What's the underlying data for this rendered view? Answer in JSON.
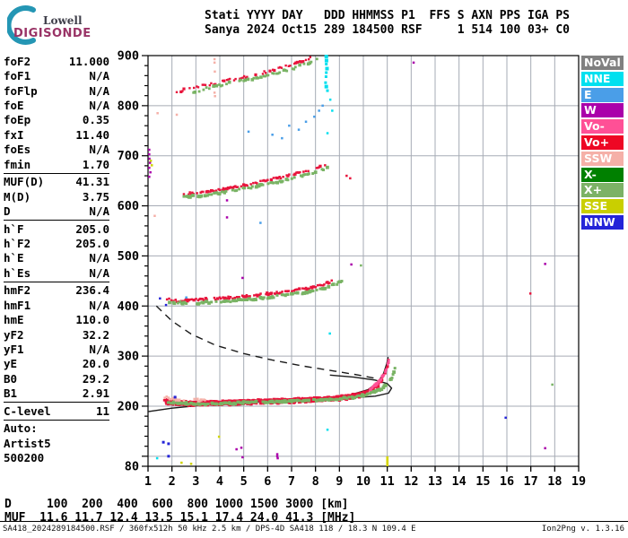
{
  "header": {
    "logo_top": "Lowell",
    "logo_bottom": "DIGISONDE",
    "line1": "Stati YYYY DAY   DDD HHMMSS P1  FFS S AXN PPS IGA PS",
    "line2": "Sanya 2024 Oct15 289 184500 RSF     1 514 100 03+ C0"
  },
  "params": {
    "groups": [
      [
        {
          "label": "foF2",
          "value": "11.000"
        },
        {
          "label": "foF1",
          "value": "N/A"
        },
        {
          "label": "foFlp",
          "value": "N/A"
        },
        {
          "label": "foE",
          "value": "N/A"
        },
        {
          "label": "foEp",
          "value": "0.35"
        },
        {
          "label": "fxI",
          "value": "11.40"
        },
        {
          "label": "foEs",
          "value": "N/A"
        },
        {
          "label": "fmin",
          "value": "1.70"
        }
      ],
      [
        {
          "label": "MUF(D)",
          "value": "41.31"
        },
        {
          "label": "M(D)",
          "value": "3.75"
        },
        {
          "label": "D",
          "value": "N/A"
        }
      ],
      [
        {
          "label": "h`F",
          "value": "205.0"
        },
        {
          "label": "h`F2",
          "value": "205.0"
        },
        {
          "label": "h`E",
          "value": "N/A"
        },
        {
          "label": "h`Es",
          "value": "N/A"
        }
      ],
      [
        {
          "label": "hmF2",
          "value": "236.4"
        },
        {
          "label": "hmF1",
          "value": "N/A"
        },
        {
          "label": "hmE",
          "value": "110.0"
        },
        {
          "label": "yF2",
          "value": "32.2"
        },
        {
          "label": "yF1",
          "value": "N/A"
        },
        {
          "label": "yE",
          "value": "20.0"
        },
        {
          "label": "B0",
          "value": "29.2"
        },
        {
          "label": "B1",
          "value": "2.91"
        }
      ],
      [
        {
          "label": "C-level",
          "value": "11"
        }
      ],
      [
        {
          "label": "Auto:",
          "value": ""
        },
        {
          "label": "Artist5",
          "value": ""
        },
        {
          "label": "500200",
          "value": ""
        }
      ]
    ]
  },
  "legend": {
    "items": [
      {
        "label": "NoVal",
        "color": "#808080"
      },
      {
        "label": "NNE",
        "color": "#00e0ef"
      },
      {
        "label": "E",
        "color": "#4a9ee8"
      },
      {
        "label": "W",
        "color": "#aa00aa"
      },
      {
        "label": "Vo-",
        "color": "#ff5096"
      },
      {
        "label": "Vo+",
        "color": "#ee0724"
      },
      {
        "label": "SSW",
        "color": "#f5b0a8"
      },
      {
        "label": "X-",
        "color": "#008000"
      },
      {
        "label": "X+",
        "color": "#7cb266"
      },
      {
        "label": "SSE",
        "color": "#c9cf00"
      },
      {
        "label": "NNW",
        "color": "#2424d8"
      }
    ]
  },
  "bottom": {
    "line1": "D     100  200  400  600  800 1000 1500 3000 [km]",
    "line2": "MUF  11.6 11.7 12.4 13.5 15.1 17.4 24.0 41.3 [MHz]"
  },
  "footer": {
    "left": "SA418_2024289184500.RSF / 360fx512h 50 kHz 2.5 km / DPS-4D SA418 118 / 18.3 N 109.4 E",
    "right": "Ion2Png v. 1.3.16"
  },
  "chart_data": {
    "type": "scatter",
    "x_unit": "MHz",
    "y_unit": "km",
    "x_axis": {
      "min": 1,
      "max": 19,
      "ticks": [
        1,
        2,
        3,
        4,
        5,
        6,
        7,
        8,
        9,
        10,
        11,
        12,
        13,
        14,
        15,
        16,
        17,
        18,
        19
      ]
    },
    "y_axis": {
      "min": 80,
      "max": 900,
      "labeled_ticks": [
        900,
        800,
        700,
        600,
        500,
        400,
        300,
        200,
        80
      ],
      "minor_step": 20
    },
    "grid": {
      "color": "#a6abb5"
    },
    "dot_colors": {
      "R": "#e8143c",
      "G": "#79b364",
      "S": "#f5b0a8",
      "P": "#ff5096",
      "W": "#aa00aa",
      "E": "#4a9ee8",
      "C": "#00dfee",
      "N": "#2424d8",
      "Y": "#cfd400",
      "X": "#008000"
    },
    "traces": [
      {
        "name": "F-1hop-O",
        "c": "R",
        "size": 2.6,
        "thick": true,
        "gap": 0.08,
        "jitter": 1.2,
        "step": 0.033,
        "points": [
          [
            1.68,
            213
          ],
          [
            2.1,
            209
          ],
          [
            3,
            208
          ],
          [
            4,
            209
          ],
          [
            5,
            211
          ],
          [
            6,
            212
          ],
          [
            7,
            214
          ],
          [
            8,
            216
          ],
          [
            8.8,
            218
          ],
          [
            9.5,
            222
          ],
          [
            10.0,
            227
          ],
          [
            10.35,
            234
          ],
          [
            10.65,
            247
          ],
          [
            10.85,
            262
          ],
          [
            11.0,
            280
          ],
          [
            11.07,
            295
          ]
        ]
      },
      {
        "name": "F-1hop-X",
        "c": "G",
        "size": 3,
        "gap": 0.3,
        "jitter": 1.8,
        "step": 0.04,
        "points": [
          [
            1.8,
            208
          ],
          [
            3,
            204
          ],
          [
            5,
            207
          ],
          [
            7,
            210
          ],
          [
            8.8,
            214
          ],
          [
            9.6,
            218
          ],
          [
            10.2,
            224
          ],
          [
            10.7,
            233
          ],
          [
            11.0,
            244
          ],
          [
            11.2,
            258
          ],
          [
            11.32,
            275
          ],
          [
            11.38,
            292
          ]
        ]
      },
      {
        "name": "F-2hop-O",
        "c": "R",
        "size": 2.5,
        "gap": 0.3,
        "jitter": 2.2,
        "step": 0.045,
        "points": [
          [
            1.75,
            414
          ],
          [
            2.2,
            410
          ],
          [
            3,
            412
          ],
          [
            4,
            415
          ],
          [
            5,
            419
          ],
          [
            6,
            424
          ],
          [
            7,
            430
          ],
          [
            7.8,
            436
          ],
          [
            8.4,
            443
          ],
          [
            8.75,
            452
          ]
        ]
      },
      {
        "name": "F-2hop-X",
        "c": "G",
        "size": 3,
        "gap": 0.4,
        "jitter": 2.2,
        "step": 0.05,
        "points": [
          [
            1.9,
            408
          ],
          [
            3,
            406
          ],
          [
            5,
            412
          ],
          [
            6.5,
            420
          ],
          [
            8,
            430
          ],
          [
            8.8,
            442
          ],
          [
            9.1,
            450
          ]
        ]
      },
      {
        "name": "F-3hop-O",
        "c": "R",
        "size": 2.5,
        "gap": 0.35,
        "jitter": 2,
        "step": 0.05,
        "points": [
          [
            2.3,
            623
          ],
          [
            3,
            626
          ],
          [
            4,
            632
          ],
          [
            5,
            641
          ],
          [
            6,
            651
          ],
          [
            7,
            662
          ],
          [
            7.8,
            672
          ],
          [
            8.4,
            681
          ]
        ]
      },
      {
        "name": "F-3hop-X",
        "c": "G",
        "size": 3,
        "gap": 0.45,
        "jitter": 2,
        "step": 0.055,
        "points": [
          [
            2.5,
            617
          ],
          [
            3.5,
            622
          ],
          [
            5,
            634
          ],
          [
            6.5,
            649
          ],
          [
            8,
            666
          ],
          [
            8.55,
            676
          ]
        ]
      },
      {
        "name": "F-4hop-O",
        "c": "R",
        "size": 2.4,
        "gap": 0.5,
        "jitter": 2.5,
        "step": 0.06,
        "points": [
          [
            2.2,
            828
          ],
          [
            3,
            837
          ],
          [
            4,
            847
          ],
          [
            5,
            857
          ],
          [
            6,
            868
          ],
          [
            7,
            881
          ],
          [
            7.9,
            897
          ]
        ]
      },
      {
        "name": "F-4hop-X",
        "c": "G",
        "size": 2.8,
        "gap": 0.55,
        "jitter": 2.5,
        "step": 0.06,
        "points": [
          [
            2.6,
            824
          ],
          [
            4,
            841
          ],
          [
            5.5,
            855
          ],
          [
            7,
            873
          ],
          [
            8.1,
            892
          ]
        ]
      },
      {
        "name": "F-tip-pink",
        "c": "P",
        "size": 2.6,
        "gap": 0.35,
        "jitter": 1.5,
        "step": 0.02,
        "points": [
          [
            10.3,
            234
          ],
          [
            10.65,
            248
          ],
          [
            10.9,
            266
          ],
          [
            11.02,
            283
          ],
          [
            11.08,
            296
          ]
        ]
      },
      {
        "name": "F-start-salmon",
        "c": "S",
        "size": 2.6,
        "gap": 0.5,
        "jitter": 2.5,
        "step": 0.04,
        "points": [
          [
            1.7,
            217
          ],
          [
            2.4,
            213
          ],
          [
            3.4,
            212
          ]
        ]
      }
    ],
    "overlays": {
      "profile_line": [
        [
          1,
          189
        ],
        [
          2,
          196
        ],
        [
          3.5,
          203
        ],
        [
          5,
          207
        ],
        [
          7,
          212
        ],
        [
          8.5,
          217
        ],
        [
          9.5,
          223
        ],
        [
          10.2,
          233
        ],
        [
          10.6,
          247
        ],
        [
          10.85,
          266
        ],
        [
          10.98,
          285
        ],
        [
          11.04,
          298
        ]
      ],
      "muf_transmission_curve": [
        [
          1.35,
          400
        ],
        [
          2,
          370
        ],
        [
          2.8,
          344
        ],
        [
          3.8,
          322
        ],
        [
          5,
          305
        ],
        [
          6.2,
          292
        ],
        [
          7.5,
          280
        ],
        [
          8.8,
          270
        ],
        [
          9.8,
          262
        ],
        [
          10.45,
          256
        ]
      ],
      "tip_hook": [
        [
          8.6,
          262
        ],
        [
          9.6,
          258
        ],
        [
          10.5,
          252
        ],
        [
          11.0,
          245
        ],
        [
          11.18,
          236
        ],
        [
          11.05,
          226
        ],
        [
          10.5,
          220
        ],
        [
          9.6,
          217
        ],
        [
          8.7,
          216
        ]
      ]
    },
    "scatter": [
      [
        "W",
        1.05,
        712
      ],
      [
        "W",
        1.05,
        703
      ],
      [
        "W",
        1.06,
        694
      ],
      [
        "W",
        1.08,
        686
      ],
      [
        "W",
        1.05,
        676
      ],
      [
        "W",
        1.1,
        667
      ],
      [
        "W",
        1.05,
        658
      ],
      [
        "Y",
        1.12,
        690
      ],
      [
        "Y",
        1.16,
        681
      ],
      [
        "S",
        1.4,
        785
      ],
      [
        "S",
        1.28,
        580
      ],
      [
        "S",
        2.2,
        782
      ],
      [
        "S",
        3.78,
        893
      ],
      [
        "S",
        3.78,
        886
      ],
      [
        "S",
        3.79,
        868
      ],
      [
        "S",
        3.78,
        826
      ],
      [
        "S",
        3.8,
        819
      ],
      [
        "E",
        5.2,
        748
      ],
      [
        "E",
        6.2,
        742
      ],
      [
        "E",
        6.6,
        735
      ],
      [
        "E",
        6.9,
        760
      ],
      [
        "E",
        7.3,
        752
      ],
      [
        "E",
        7.6,
        768
      ],
      [
        "E",
        7.95,
        778
      ],
      [
        "E",
        8.15,
        790
      ],
      [
        "E",
        8.3,
        800
      ],
      [
        "E",
        5.7,
        566
      ],
      [
        "E",
        2.6,
        417
      ],
      [
        "C",
        8.45,
        898,
        4
      ],
      [
        "C",
        8.46,
        890,
        4
      ],
      [
        "C",
        8.45,
        883,
        3
      ],
      [
        "C",
        8.48,
        874,
        4
      ],
      [
        "C",
        8.45,
        866,
        3
      ],
      [
        "C",
        8.44,
        858,
        3
      ],
      [
        "C",
        8.42,
        846,
        3
      ],
      [
        "C",
        8.45,
        838,
        4
      ],
      [
        "C",
        8.5,
        830,
        3
      ],
      [
        "C",
        8.62,
        812
      ],
      [
        "C",
        8.7,
        790
      ],
      [
        "C",
        8.5,
        745
      ],
      [
        "C",
        8.6,
        345
      ],
      [
        "C",
        8.5,
        153
      ],
      [
        "C",
        1.38,
        96
      ],
      [
        "N",
        1.64,
        128,
        3
      ],
      [
        "N",
        1.86,
        125,
        3
      ],
      [
        "N",
        1.86,
        100,
        3
      ],
      [
        "N",
        15.95,
        177
      ],
      [
        "N",
        1.5,
        415
      ],
      [
        "N",
        1.75,
        402
      ],
      [
        "N",
        2.13,
        218,
        3
      ],
      [
        "R",
        16.98,
        425
      ],
      [
        "R",
        9.3,
        660
      ],
      [
        "R",
        9.45,
        655
      ],
      [
        "G",
        17.9,
        243
      ],
      [
        "G",
        9.9,
        481
      ],
      [
        "W",
        4.7,
        114
      ],
      [
        "W",
        4.9,
        117
      ],
      [
        "W",
        4.95,
        98
      ],
      [
        "W",
        6.4,
        104
      ],
      [
        "W",
        6.4,
        100
      ],
      [
        "W",
        6.42,
        96
      ],
      [
        "W",
        17.6,
        484
      ],
      [
        "W",
        17.6,
        116
      ],
      [
        "W",
        4.3,
        611
      ],
      [
        "W",
        4.3,
        577
      ],
      [
        "W",
        9.5,
        483
      ],
      [
        "W",
        12.1,
        886
      ],
      [
        "W",
        4.95,
        456
      ],
      [
        "Y",
        3.97,
        139
      ],
      [
        "Y",
        2.8,
        85
      ],
      [
        "Y",
        2.4,
        87
      ]
    ],
    "axis_marker": {
      "f": 11.0,
      "color": "#d6d600"
    }
  }
}
